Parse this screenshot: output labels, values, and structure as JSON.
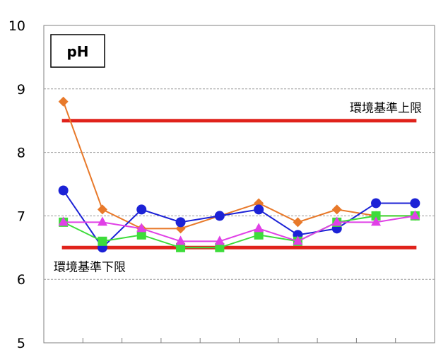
{
  "chart_data": {
    "type": "line",
    "title": "pH",
    "xlabel": "",
    "ylabel": "",
    "ylim": [
      5,
      10
    ],
    "yticks": [
      "5",
      "6",
      "7",
      "8",
      "9",
      "10"
    ],
    "x_count": 10,
    "grid": "horizontal-dashed",
    "reference_lines": [
      {
        "label": "環境基準上限",
        "value": 8.5,
        "color": "#e0221b"
      },
      {
        "label": "環境基準下限",
        "value": 6.5,
        "color": "#e0221b"
      }
    ],
    "series": [
      {
        "marker": "diamond",
        "color": "#e8792a",
        "values": [
          8.8,
          7.1,
          6.8,
          6.8,
          7.0,
          7.2,
          6.9,
          7.1,
          7.0,
          7.0
        ]
      },
      {
        "marker": "circle",
        "color": "#1c22d6",
        "values": [
          7.4,
          6.5,
          7.1,
          6.9,
          7.0,
          7.1,
          6.7,
          6.8,
          7.2,
          7.2
        ]
      },
      {
        "marker": "square",
        "color": "#3ddc3a",
        "values": [
          6.9,
          6.6,
          6.7,
          6.5,
          6.5,
          6.7,
          6.6,
          6.9,
          7.0,
          7.0
        ]
      },
      {
        "marker": "triangle",
        "color": "#e040e6",
        "values": [
          6.9,
          6.9,
          6.8,
          6.6,
          6.6,
          6.8,
          6.6,
          6.9,
          6.9,
          7.0
        ]
      }
    ]
  }
}
